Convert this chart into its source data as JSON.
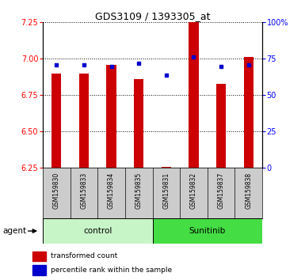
{
  "title": "GDS3109 / 1393305_at",
  "samples": [
    "GSM159830",
    "GSM159833",
    "GSM159834",
    "GSM159835",
    "GSM159831",
    "GSM159832",
    "GSM159837",
    "GSM159838"
  ],
  "red_values": [
    6.9,
    6.9,
    6.96,
    6.86,
    6.26,
    7.25,
    6.83,
    7.01
  ],
  "blue_values": [
    71,
    71,
    70,
    72,
    64,
    76,
    70,
    71
  ],
  "ylim_left": [
    6.25,
    7.25
  ],
  "ylim_right": [
    0,
    100
  ],
  "yticks_left": [
    6.25,
    6.5,
    6.75,
    7.0,
    7.25
  ],
  "yticks_right": [
    0,
    25,
    50,
    75,
    100
  ],
  "ytick_labels_right": [
    "0",
    "25",
    "50",
    "75",
    "100%"
  ],
  "groups": [
    {
      "label": "control",
      "indices": [
        0,
        1,
        2,
        3
      ],
      "color": "#c8f5c8"
    },
    {
      "label": "Sunitinib",
      "indices": [
        4,
        5,
        6,
        7
      ],
      "color": "#44dd44"
    }
  ],
  "bar_color": "#cc0000",
  "dot_color": "#0000cc",
  "bar_bottom": 6.25,
  "plot_bg_color": "#ffffff",
  "tick_area_color": "#cccccc",
  "agent_label": "agent",
  "legend_red": "transformed count",
  "legend_blue": "percentile rank within the sample",
  "title_fontsize": 9,
  "axis_fontsize": 7,
  "label_fontsize": 7
}
